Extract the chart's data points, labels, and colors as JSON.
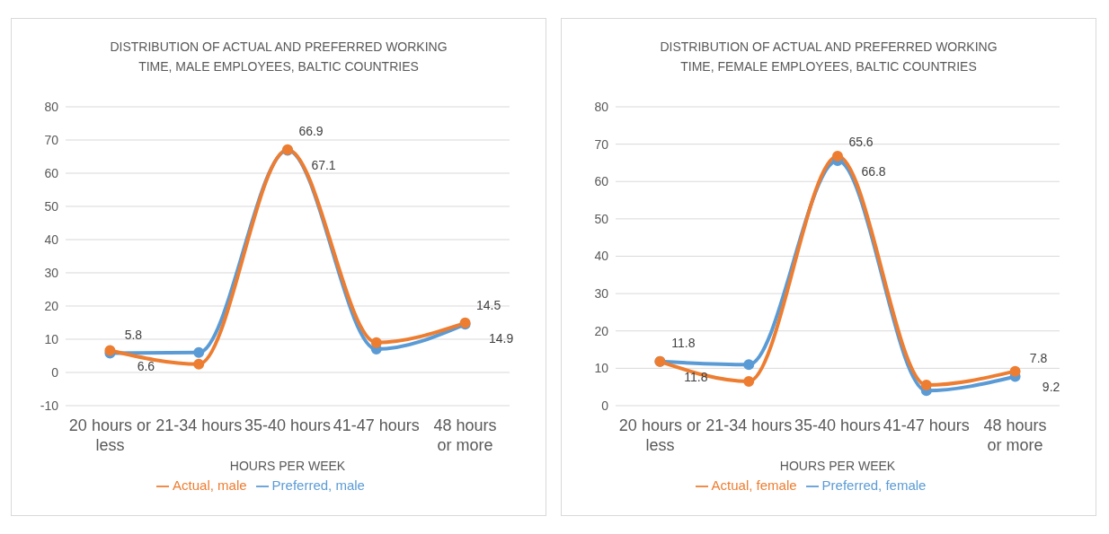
{
  "chart_data": [
    {
      "type": "line",
      "title": "DISTRIBUTION OF ACTUAL AND PREFERRED WORKING TIME, MALE EMPLOYEES, BALTIC  COUNTRIES",
      "xlabel": "HOURS PER WEEK",
      "categories": [
        "20 hours or less",
        "21-34 hours",
        "35-40 hours",
        "41-47 hours",
        "48  hours or more"
      ],
      "series": [
        {
          "name": "Preferred, male",
          "color": "#5b9bd5",
          "values": [
            5.8,
            6,
            66.9,
            7,
            14.5
          ],
          "value_labels": [
            "5.8",
            null,
            "66.9",
            null,
            "14.5"
          ]
        },
        {
          "name": "Actual, male",
          "color": "#ed7d31",
          "values": [
            6.6,
            2.5,
            67.1,
            9,
            14.9
          ],
          "value_labels": [
            "6.6",
            null,
            "67.1",
            null,
            "14.9"
          ]
        }
      ],
      "ylim": [
        -10,
        80
      ],
      "yticks": [
        -10,
        0,
        10,
        20,
        30,
        40,
        50,
        60,
        70,
        80
      ],
      "grid": "y",
      "legend": "bottom",
      "marker": "circle"
    },
    {
      "type": "line",
      "title": "DISTRIBUTION OF ACTUAL AND PREFERRED WORKING TIME, FEMALE EMPLOYEES, BALTIC  COUNTRIES",
      "xlabel": "HOURS PER WEEK",
      "categories": [
        "20 hours or less",
        "21-34 hours",
        "35-40 hours",
        "41-47 hours",
        "48  hours or more"
      ],
      "series": [
        {
          "name": "Preferred, female",
          "color": "#5b9bd5",
          "values": [
            11.8,
            11,
            65.6,
            4,
            7.8
          ],
          "value_labels": [
            "11.8",
            null,
            "65.6",
            null,
            "7.8"
          ]
        },
        {
          "name": "Actual, female",
          "color": "#ed7d31",
          "values": [
            11.8,
            6.5,
            66.8,
            5.5,
            9.2
          ],
          "value_labels": [
            "11.8",
            null,
            "66.8",
            null,
            "9.2"
          ]
        }
      ],
      "ylim": [
        0,
        80
      ],
      "yticks": [
        0,
        10,
        20,
        30,
        40,
        50,
        60,
        70,
        80
      ],
      "grid": "y",
      "legend": "bottom",
      "marker": "circle"
    }
  ]
}
